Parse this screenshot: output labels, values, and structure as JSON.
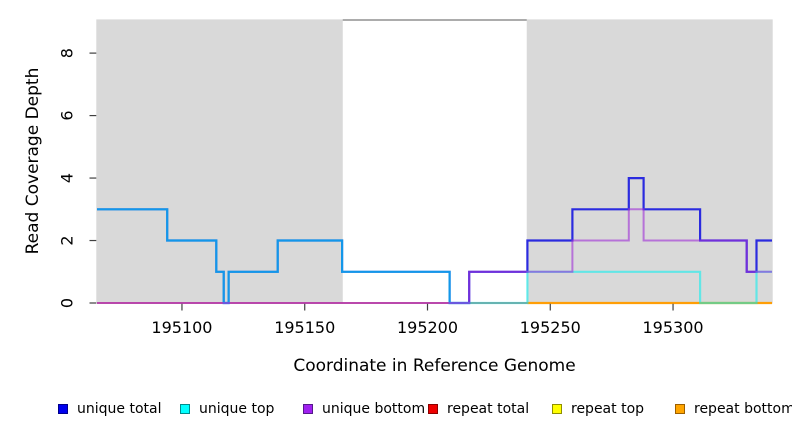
{
  "chart_data": {
    "type": "line",
    "step": true,
    "title": "",
    "xlabel": "Coordinate in Reference Genome",
    "ylabel": "Read Coverage Depth",
    "xlim": [
      195065.4,
      195340.3
    ],
    "ylim": [
      0,
      9.06
    ],
    "x_ticks": [
      195100,
      195150,
      195200,
      195250,
      195300
    ],
    "y_ticks": [
      0,
      2,
      4,
      6,
      8
    ],
    "grid": false,
    "legend_position": "bottom",
    "shaded_regions": [
      {
        "name": "left-gray-region",
        "x0": 195065.4,
        "x1": 195165.2,
        "color": "#d9d9d9"
      },
      {
        "name": "right-gray-region",
        "x0": 195240.7,
        "x1": 195340.3,
        "color": "#d9d9d9"
      }
    ],
    "series": [
      {
        "name": "repeat top",
        "color": "#ffff00",
        "opacity": 1,
        "width": 1.6,
        "points": [
          [
            195065.4,
            0
          ],
          [
            195340.3,
            0
          ]
        ]
      },
      {
        "name": "repeat total",
        "color": "#d93a60",
        "opacity": 1,
        "width": 1.6,
        "points": [
          [
            195065.4,
            0
          ],
          [
            195340.3,
            0
          ]
        ]
      },
      {
        "name": "repeat bottom",
        "color": "#ff9e06",
        "opacity": 1,
        "width": 2.2,
        "draw_from": 195240.7,
        "points": [
          [
            195065.4,
            0
          ],
          [
            195340.3,
            0
          ]
        ]
      },
      {
        "name": "unique total",
        "color": "#2b2bdf",
        "opacity": 1,
        "width": 2.2,
        "points": [
          [
            195065.4,
            3
          ],
          [
            195094,
            2
          ],
          [
            195114,
            1
          ],
          [
            195117,
            0
          ],
          [
            195119,
            1
          ],
          [
            195139,
            2
          ],
          [
            195165.2,
            1
          ],
          [
            195209,
            0
          ],
          [
            195217,
            1
          ],
          [
            195240.7,
            2
          ],
          [
            195259,
            3
          ],
          [
            195282,
            4
          ],
          [
            195288,
            3
          ],
          [
            195311,
            2
          ],
          [
            195330,
            1
          ],
          [
            195334,
            2
          ],
          [
            195340.3,
            2
          ]
        ]
      },
      {
        "name": "unique top",
        "color": "#00f0f0",
        "opacity": 0.55,
        "width": 2.2,
        "points": [
          [
            195065.4,
            3
          ],
          [
            195094,
            2
          ],
          [
            195114,
            1
          ],
          [
            195117,
            0
          ],
          [
            195119,
            1
          ],
          [
            195139,
            2
          ],
          [
            195165.2,
            1
          ],
          [
            195209,
            0
          ],
          [
            195240.7,
            1
          ],
          [
            195311,
            0
          ],
          [
            195334,
            1
          ],
          [
            195340.3,
            1
          ]
        ]
      },
      {
        "name": "unique bottom",
        "color": "#a032d6",
        "opacity": 0.62,
        "width": 2.0,
        "points": [
          [
            195065.4,
            0
          ],
          [
            195217,
            1
          ],
          [
            195259,
            2
          ],
          [
            195282,
            3
          ],
          [
            195288,
            2
          ],
          [
            195330,
            1
          ],
          [
            195340.3,
            1
          ]
        ]
      }
    ],
    "legend": [
      {
        "label": "unique total",
        "fill": "#0000ee",
        "border": "#00008b"
      },
      {
        "label": "unique top",
        "fill": "#00ffff",
        "border": "#008b8b"
      },
      {
        "label": "unique bottom",
        "fill": "#a020f0",
        "border": "#551a8b"
      },
      {
        "label": "repeat total",
        "fill": "#ee0000",
        "border": "#8b0000"
      },
      {
        "label": "repeat top",
        "fill": "#ffff00",
        "border": "#8f8f00"
      },
      {
        "label": "repeat bottom",
        "fill": "#ffa500",
        "border": "#9c5f00"
      }
    ],
    "frame_color": "#5a5a5a",
    "tick_color": "#404040"
  }
}
